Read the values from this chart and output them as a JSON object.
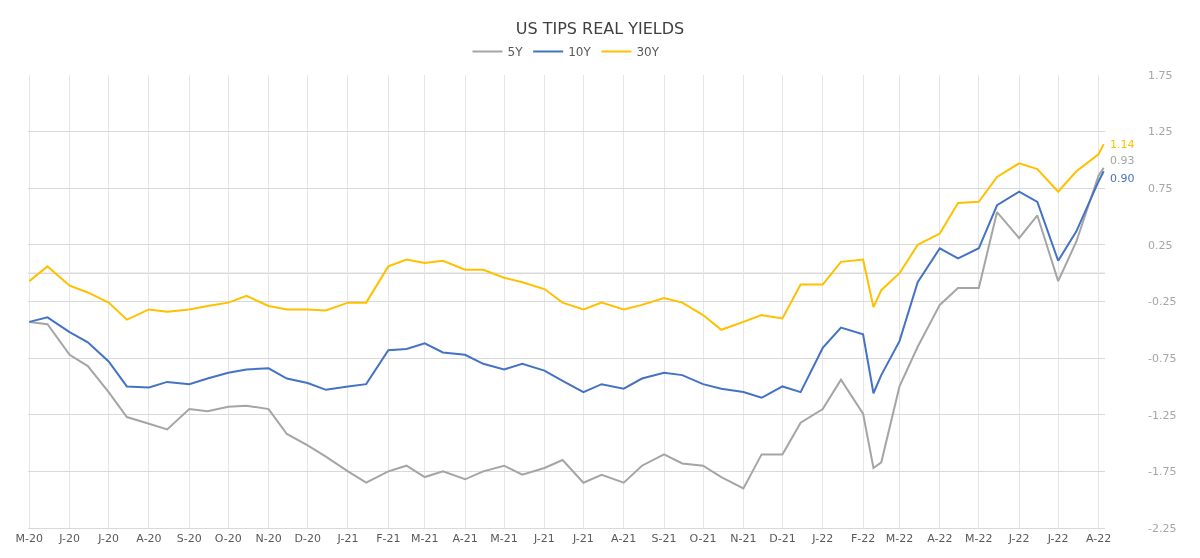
{
  "chart_data": {
    "type": "line",
    "title": "US TIPS REAL YIELDS",
    "x": [
      "2020-05-01",
      "2020-05-15",
      "2020-06-01",
      "2020-06-15",
      "2020-07-01",
      "2020-07-15",
      "2020-08-01",
      "2020-08-15",
      "2020-09-01",
      "2020-09-15",
      "2020-10-01",
      "2020-10-15",
      "2020-11-01",
      "2020-11-15",
      "2020-12-01",
      "2020-12-15",
      "2021-01-01",
      "2021-01-15",
      "2021-02-01",
      "2021-02-15",
      "2021-03-01",
      "2021-03-15",
      "2021-04-01",
      "2021-04-15",
      "2021-05-01",
      "2021-05-15",
      "2021-06-01",
      "2021-06-15",
      "2021-07-01",
      "2021-07-15",
      "2021-08-01",
      "2021-08-15",
      "2021-09-01",
      "2021-09-15",
      "2021-10-01",
      "2021-10-15",
      "2021-11-01",
      "2021-11-15",
      "2021-12-01",
      "2021-12-15",
      "2022-01-01",
      "2022-01-15",
      "2022-02-01",
      "2022-02-09",
      "2022-02-15",
      "2022-03-01",
      "2022-03-15",
      "2022-04-01",
      "2022-04-15",
      "2022-05-01",
      "2022-05-15",
      "2022-06-01",
      "2022-06-15",
      "2022-07-01",
      "2022-07-15",
      "2022-08-01",
      "2022-08-05"
    ],
    "series": [
      {
        "name": "5Y",
        "color": "#a5a5a5",
        "values": [
          -0.43,
          -0.45,
          -0.72,
          -0.82,
          -1.05,
          -1.27,
          -1.33,
          -1.38,
          -1.2,
          -1.22,
          -1.18,
          -1.17,
          -1.2,
          -1.42,
          -1.52,
          -1.62,
          -1.75,
          -1.85,
          -1.75,
          -1.7,
          -1.8,
          -1.75,
          -1.82,
          -1.75,
          -1.7,
          -1.78,
          -1.72,
          -1.65,
          -1.85,
          -1.78,
          -1.85,
          -1.7,
          -1.6,
          -1.68,
          -1.7,
          -1.8,
          -1.9,
          -1.6,
          -1.6,
          -1.32,
          -1.2,
          -0.94,
          -1.24,
          -1.72,
          -1.67,
          -1.0,
          -0.65,
          -0.28,
          -0.13,
          -0.13,
          0.54,
          0.31,
          0.51,
          -0.07,
          0.28,
          0.86,
          0.93
        ]
      },
      {
        "name": "10Y",
        "color": "#4472c4",
        "values": [
          -0.43,
          -0.39,
          -0.52,
          -0.61,
          -0.78,
          -1.0,
          -1.01,
          -0.96,
          -0.98,
          -0.93,
          -0.88,
          -0.85,
          -0.84,
          -0.93,
          -0.97,
          -1.03,
          -1.0,
          -0.98,
          -0.68,
          -0.67,
          -0.62,
          -0.7,
          -0.72,
          -0.8,
          -0.85,
          -0.8,
          -0.86,
          -0.95,
          -1.05,
          -0.98,
          -1.02,
          -0.93,
          -0.88,
          -0.9,
          -0.98,
          -1.02,
          -1.05,
          -1.1,
          -1.0,
          -1.05,
          -0.66,
          -0.48,
          -0.54,
          -1.06,
          -0.9,
          -0.6,
          -0.08,
          0.22,
          0.13,
          0.22,
          0.6,
          0.72,
          0.63,
          0.11,
          0.37,
          0.81,
          0.9
        ]
      },
      {
        "name": "30Y",
        "color": "#ffc000",
        "values": [
          -0.07,
          0.06,
          -0.11,
          -0.17,
          -0.26,
          -0.41,
          -0.32,
          -0.34,
          -0.32,
          -0.29,
          -0.26,
          -0.2,
          -0.29,
          -0.32,
          -0.32,
          -0.33,
          -0.26,
          -0.26,
          0.06,
          0.12,
          0.09,
          0.11,
          0.03,
          0.03,
          -0.04,
          -0.08,
          -0.14,
          -0.26,
          -0.32,
          -0.26,
          -0.32,
          -0.28,
          -0.22,
          -0.26,
          -0.37,
          -0.5,
          -0.43,
          -0.37,
          -0.4,
          -0.1,
          -0.1,
          0.1,
          0.12,
          -0.3,
          -0.15,
          0.0,
          0.25,
          0.35,
          0.62,
          0.63,
          0.85,
          0.97,
          0.92,
          0.72,
          0.9,
          1.05,
          1.14
        ]
      }
    ],
    "annotations": [
      {
        "text": "0.93",
        "x": "2022-08-05",
        "y": 0.93
      },
      {
        "text": "0.90",
        "x": "2022-08-05",
        "y": 0.9
      },
      {
        "text": "1.14",
        "x": "2022-08-05",
        "y": 1.14
      }
    ],
    "ref_lines": [
      {
        "axis": "y",
        "value": 0,
        "color": "#c8c8c8"
      }
    ],
    "xlim": [
      "2020-04-30",
      "2022-08-06"
    ],
    "xticks": [
      {
        "value": "2020-05-01",
        "label": "M-20"
      },
      {
        "value": "2020-06-01",
        "label": "J-20"
      },
      {
        "value": "2020-07-01",
        "label": "J-20"
      },
      {
        "value": "2020-08-01",
        "label": "A-20"
      },
      {
        "value": "2020-09-01",
        "label": "S-20"
      },
      {
        "value": "2020-10-01",
        "label": "O-20"
      },
      {
        "value": "2020-11-01",
        "label": "N-20"
      },
      {
        "value": "2020-12-01",
        "label": "D-20"
      },
      {
        "value": "2021-01-01",
        "label": "J-21"
      },
      {
        "value": "2021-02-01",
        "label": "F-21"
      },
      {
        "value": "2021-03-01",
        "label": "M-21"
      },
      {
        "value": "2021-04-01",
        "label": "A-21"
      },
      {
        "value": "2021-05-01",
        "label": "M-21"
      },
      {
        "value": "2021-06-01",
        "label": "J-21"
      },
      {
        "value": "2021-07-01",
        "label": "J-21"
      },
      {
        "value": "2021-08-01",
        "label": "A-21"
      },
      {
        "value": "2021-09-01",
        "label": "S-21"
      },
      {
        "value": "2021-10-01",
        "label": "O-21"
      },
      {
        "value": "2021-11-01",
        "label": "N-21"
      },
      {
        "value": "2021-12-01",
        "label": "D-21"
      },
      {
        "value": "2022-01-01",
        "label": "J-22"
      },
      {
        "value": "2022-02-01",
        "label": "F-22"
      },
      {
        "value": "2022-03-01",
        "label": "M-22"
      },
      {
        "value": "2022-04-01",
        "label": "A-22"
      },
      {
        "value": "2022-05-01",
        "label": "M-22"
      },
      {
        "value": "2022-06-01",
        "label": "J-22"
      },
      {
        "value": "2022-07-01",
        "label": "J-22"
      },
      {
        "value": "2022-08-01",
        "label": "A-22"
      }
    ],
    "ylim": [
      -2.25,
      1.75
    ],
    "yticks": [
      -2.25,
      -1.75,
      -1.25,
      -0.75,
      -0.25,
      0.25,
      0.75,
      1.25,
      1.75
    ],
    "grid": true,
    "legend": "top",
    "marker": "none",
    "line_style": "solid"
  }
}
